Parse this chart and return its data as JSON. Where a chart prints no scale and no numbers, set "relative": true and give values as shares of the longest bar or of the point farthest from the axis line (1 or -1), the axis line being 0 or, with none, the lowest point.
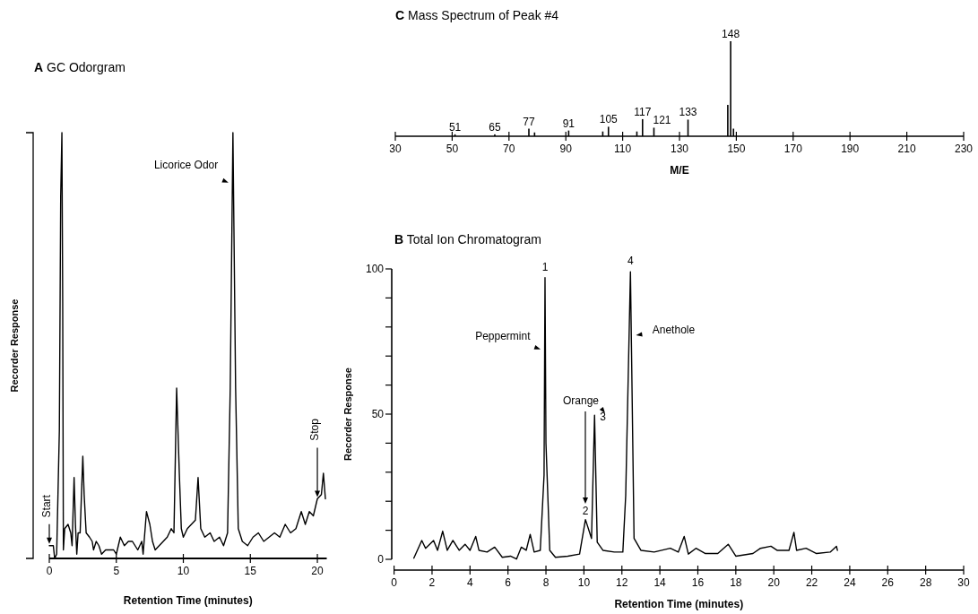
{
  "chart_data": [
    {
      "type": "line",
      "title": "A GC Odorgram",
      "xlabel": "Retention Time (minutes)",
      "ylabel": "Recorder Response",
      "relative": true,
      "xlim": [
        0,
        20.7
      ],
      "xticks": [
        0,
        5,
        10,
        15,
        20
      ],
      "x": [
        0,
        0.3,
        0.4,
        0.55,
        0.75,
        0.85,
        0.94,
        1.0,
        1.05,
        1.15,
        1.4,
        1.6,
        1.7,
        1.85,
        1.95,
        2.05,
        2.15,
        2.3,
        2.5,
        2.6,
        2.75,
        3.0,
        3.2,
        3.3,
        3.5,
        3.7,
        3.9,
        4.2,
        4.5,
        4.8,
        5.0,
        5.3,
        5.6,
        5.9,
        6.2,
        6.6,
        6.9,
        7.0,
        7.25,
        7.5,
        7.7,
        7.9,
        8.2,
        8.5,
        8.8,
        9.1,
        9.3,
        9.5,
        9.7,
        9.85,
        10.0,
        10.3,
        10.6,
        10.9,
        11.1,
        11.3,
        11.6,
        12.0,
        12.3,
        12.7,
        13.0,
        13.3,
        13.5,
        13.7,
        13.9,
        14.1,
        14.4,
        14.8,
        15.2,
        15.6,
        16.0,
        16.4,
        16.8,
        17.2,
        17.6,
        18.0,
        18.4,
        18.8,
        19.1,
        19.4,
        19.7,
        20.0,
        20.3,
        20.45,
        20.6
      ],
      "series": [
        {
          "color": "#000000",
          "values": [
            0.03,
            0.03,
            0,
            0.01,
            0.3,
            0.85,
            1,
            0.6,
            0.02,
            0.07,
            0.08,
            0.06,
            0.03,
            0.19,
            0.08,
            0.01,
            0.06,
            0.06,
            0.24,
            0.15,
            0.06,
            0.05,
            0.04,
            0.02,
            0.04,
            0.03,
            0.01,
            0.02,
            0.02,
            0.02,
            0.01,
            0.05,
            0.03,
            0.04,
            0.04,
            0.02,
            0.04,
            0.01,
            0.11,
            0.08,
            0.04,
            0.02,
            0.03,
            0.04,
            0.05,
            0.07,
            0.06,
            0.4,
            0.2,
            0.07,
            0.05,
            0.07,
            0.08,
            0.09,
            0.19,
            0.07,
            0.05,
            0.06,
            0.04,
            0.05,
            0.03,
            0.06,
            0.4,
            1,
            0.4,
            0.07,
            0.04,
            0.03,
            0.05,
            0.06,
            0.04,
            0.05,
            0.06,
            0.05,
            0.08,
            0.06,
            0.07,
            0.11,
            0.08,
            0.11,
            0.1,
            0.14,
            0.15,
            0.2,
            0.14
          ]
        }
      ],
      "annotations": [
        {
          "text": "Licorice Odor",
          "x": 13.55,
          "y": 0.88
        },
        {
          "text": "Start",
          "x": 0,
          "y": 0.03
        },
        {
          "text": "Stop",
          "x": 20,
          "y": 0.14
        }
      ]
    },
    {
      "type": "bar",
      "title": "C Mass Spectrum of Peak #4",
      "xlabel": "M/E",
      "relative": true,
      "xlim": [
        30,
        230
      ],
      "xticks": [
        30,
        50,
        70,
        90,
        110,
        130,
        150,
        170,
        190,
        210,
        230
      ],
      "x": [
        51,
        65,
        77,
        79,
        91,
        103,
        105,
        115,
        117,
        121,
        133,
        147,
        148,
        149
      ],
      "series": [
        {
          "color": "#000000",
          "values": [
            0.02,
            0.02,
            0.08,
            0.04,
            0.06,
            0.05,
            0.1,
            0.05,
            0.18,
            0.09,
            0.175,
            0.33,
            1,
            0.08
          ]
        }
      ],
      "annotations": [
        {
          "text": "51",
          "x": 51,
          "y": 0.02
        },
        {
          "text": "65",
          "x": 65,
          "y": 0.02
        },
        {
          "text": "77",
          "x": 77,
          "y": 0.08
        },
        {
          "text": "91",
          "x": 91,
          "y": 0.06
        },
        {
          "text": "105",
          "x": 105,
          "y": 0.1
        },
        {
          "text": "117",
          "x": 117,
          "y": 0.18
        },
        {
          "text": "121",
          "x": 121,
          "y": 0.09
        },
        {
          "text": "133",
          "x": 133,
          "y": 0.175
        },
        {
          "text": "148",
          "x": 148,
          "y": 1
        }
      ]
    },
    {
      "type": "line",
      "title": "B Total Ion Chromatogram",
      "xlabel": "Retention Time (minutes)",
      "ylabel": "Recorder Response",
      "xlim": [
        0,
        30
      ],
      "xticks": [
        0,
        2,
        4,
        6,
        8,
        10,
        12,
        14,
        16,
        18,
        20,
        22,
        24,
        26,
        28,
        30
      ],
      "ylim": [
        0,
        100
      ],
      "yticks": [
        0,
        {
          "value": 10,
          "label": null
        },
        {
          "value": 20,
          "label": null
        },
        {
          "value": 30,
          "label": null
        },
        {
          "value": 40,
          "label": null
        },
        50,
        {
          "value": 60,
          "label": null
        },
        {
          "value": 70,
          "label": null
        },
        {
          "value": 80,
          "label": null
        },
        {
          "value": 90,
          "label": null
        },
        100
      ],
      "x": [
        1.04,
        1.46,
        1.66,
        2.08,
        2.29,
        2.56,
        2.8,
        3.1,
        3.43,
        3.74,
        4.0,
        4.3,
        4.47,
        4.9,
        5.3,
        5.7,
        6.13,
        6.45,
        6.7,
        6.96,
        7.17,
        7.38,
        7.7,
        7.9,
        7.95,
        8.0,
        8.2,
        8.5,
        9.15,
        9.77,
        10.08,
        10.4,
        10.56,
        10.7,
        11.0,
        11.6,
        12.05,
        12.2,
        12.45,
        12.64,
        13.0,
        13.7,
        14.55,
        14.97,
        15.28,
        15.5,
        15.9,
        16.4,
        17.05,
        17.6,
        18.0,
        18.9,
        19.3,
        19.85,
        20.17,
        20.8,
        21.06,
        21.2,
        21.7,
        22.25,
        22.97,
        23.3,
        23.35
      ],
      "series": [
        {
          "color": "#000000",
          "values": [
            0.4,
            6.5,
            3.8,
            6.5,
            3.1,
            9.7,
            3.1,
            6.5,
            3.1,
            5.2,
            3.1,
            7.9,
            3.1,
            2.5,
            4.2,
            0.7,
            1.1,
            0.1,
            4.2,
            3.1,
            8.6,
            2.5,
            3.1,
            29,
            97,
            40,
            3.1,
            0.7,
            1.1,
            1.8,
            13.7,
            7.2,
            49.6,
            5.9,
            3.1,
            2.5,
            2.5,
            22,
            99,
            7.2,
            3.1,
            2.5,
            3.8,
            2.5,
            7.9,
            1.8,
            3.8,
            2,
            2,
            5.2,
            1.1,
            2,
            3.8,
            4.5,
            3.1,
            3.1,
            9.3,
            3.1,
            3.8,
            2,
            2.5,
            4.5,
            3.1
          ]
        }
      ],
      "annotations": [
        {
          "text": "1",
          "x": 7.95,
          "y": 97
        },
        {
          "text": "2",
          "x": 10.08,
          "y": 13.7
        },
        {
          "text": "3",
          "x": 10.56,
          "y": 49.6
        },
        {
          "text": "4",
          "x": 12.45,
          "y": 99
        },
        {
          "text": "Peppermint",
          "x": 7.85,
          "y": 72
        },
        "Orange",
        {
          "text": "Anethole",
          "x": 12.6,
          "y": 77
        }
      ]
    }
  ]
}
